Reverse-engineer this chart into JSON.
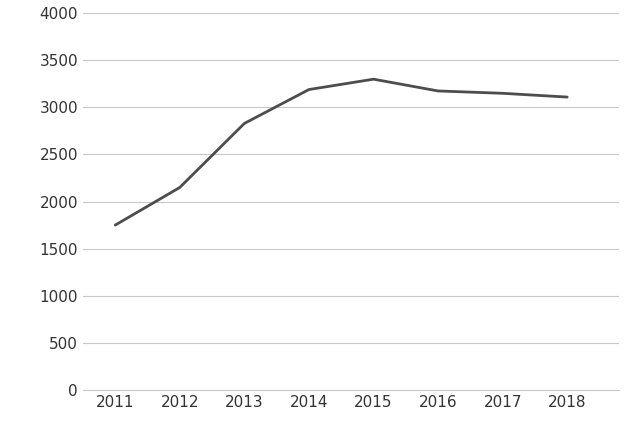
{
  "x": [
    2011,
    2012,
    2013,
    2014,
    2015,
    2016,
    2017,
    2018
  ],
  "y": [
    1750,
    2150,
    2830,
    3190,
    3300,
    3175,
    3150,
    3110
  ],
  "line_color": "#4d4d4d",
  "line_width": 2.0,
  "background_color": "#ffffff",
  "grid_color": "#c8c8c8",
  "tick_color": "#333333",
  "ylim": [
    0,
    4000
  ],
  "yticks": [
    0,
    500,
    1000,
    1500,
    2000,
    2500,
    3000,
    3500,
    4000
  ],
  "xlim": [
    2010.5,
    2018.8
  ],
  "xticks": [
    2011,
    2012,
    2013,
    2014,
    2015,
    2016,
    2017,
    2018
  ],
  "tick_fontsize": 11,
  "figsize": [
    6.38,
    4.43
  ],
  "dpi": 100
}
